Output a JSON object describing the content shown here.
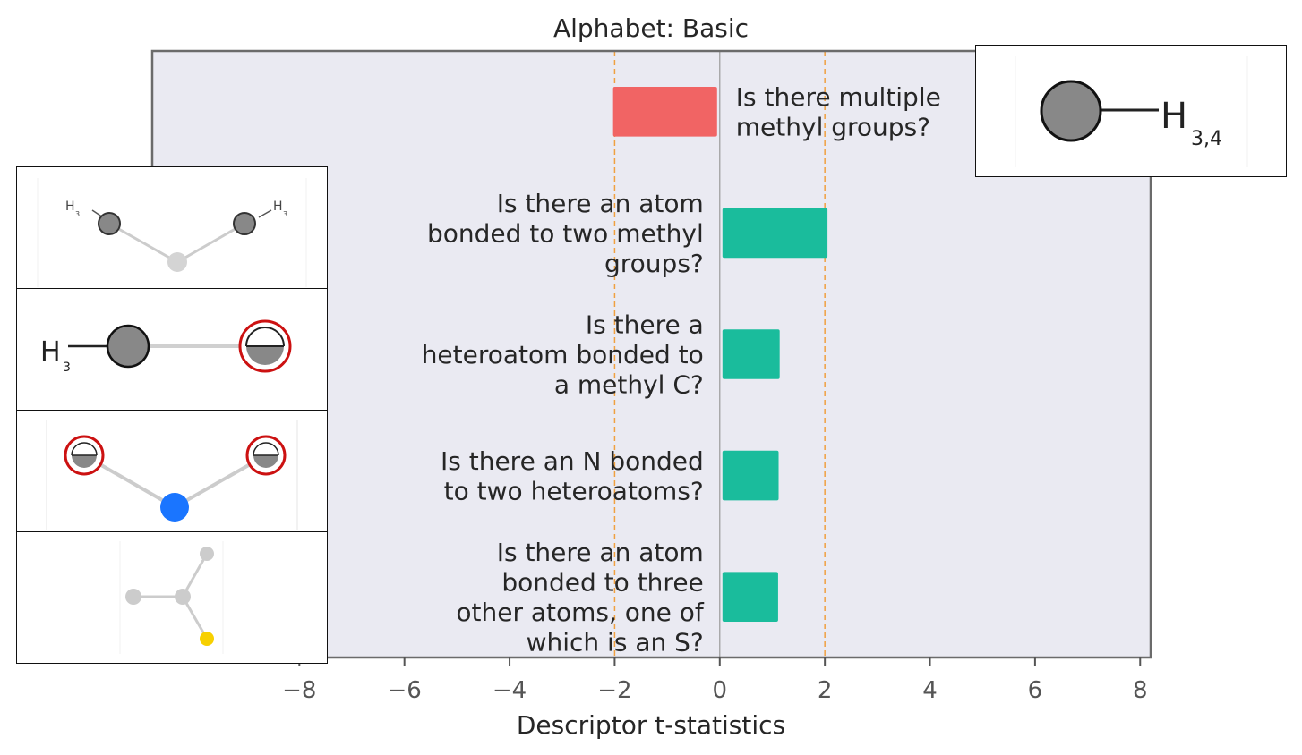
{
  "chart_data": {
    "type": "bar",
    "orientation": "horizontal",
    "title": "Alphabet: Basic",
    "xlabel": "Descriptor t-statistics",
    "xlim": [
      -10.8,
      8.2
    ],
    "xticks": [
      -8,
      -6,
      -4,
      -2,
      0,
      2,
      4,
      6,
      8
    ],
    "xtick_labels": [
      "−8",
      "−6",
      "−4",
      "−2",
      "0",
      "2",
      "4",
      "6",
      "8"
    ],
    "threshold_lines": [
      -2,
      2
    ],
    "grid": false,
    "categories": [
      [
        "Is there multiple",
        "methyl groups?"
      ],
      [
        "Is there an atom",
        "bonded to two methyl",
        "groups?"
      ],
      [
        "Is there a",
        "heteroatom bonded to",
        "a methyl C?"
      ],
      [
        "Is there an N bonded",
        "to two heteroatoms?"
      ],
      [
        "Is there an atom",
        "bonded to three",
        "other atoms, one of",
        "which is an S?"
      ]
    ],
    "values": [
      -2.03,
      2.05,
      1.14,
      1.12,
      1.11
    ]
  },
  "colors": {
    "negative": "#f16464",
    "positive": "#1abc9c",
    "plot_background": "#eaeaf2",
    "threshold": "#f0a040",
    "text": "#262626",
    "tick_text": "#555555"
  },
  "molecules": {
    "top_right": {
      "labels": [
        "H",
        "3,4"
      ]
    },
    "mol1": {
      "labels": [
        "H",
        "3",
        "H",
        "3"
      ]
    },
    "mol2": {
      "labels": [
        "H",
        "3"
      ]
    },
    "mol3": {
      "labels": []
    },
    "mol4": {
      "labels": []
    }
  }
}
